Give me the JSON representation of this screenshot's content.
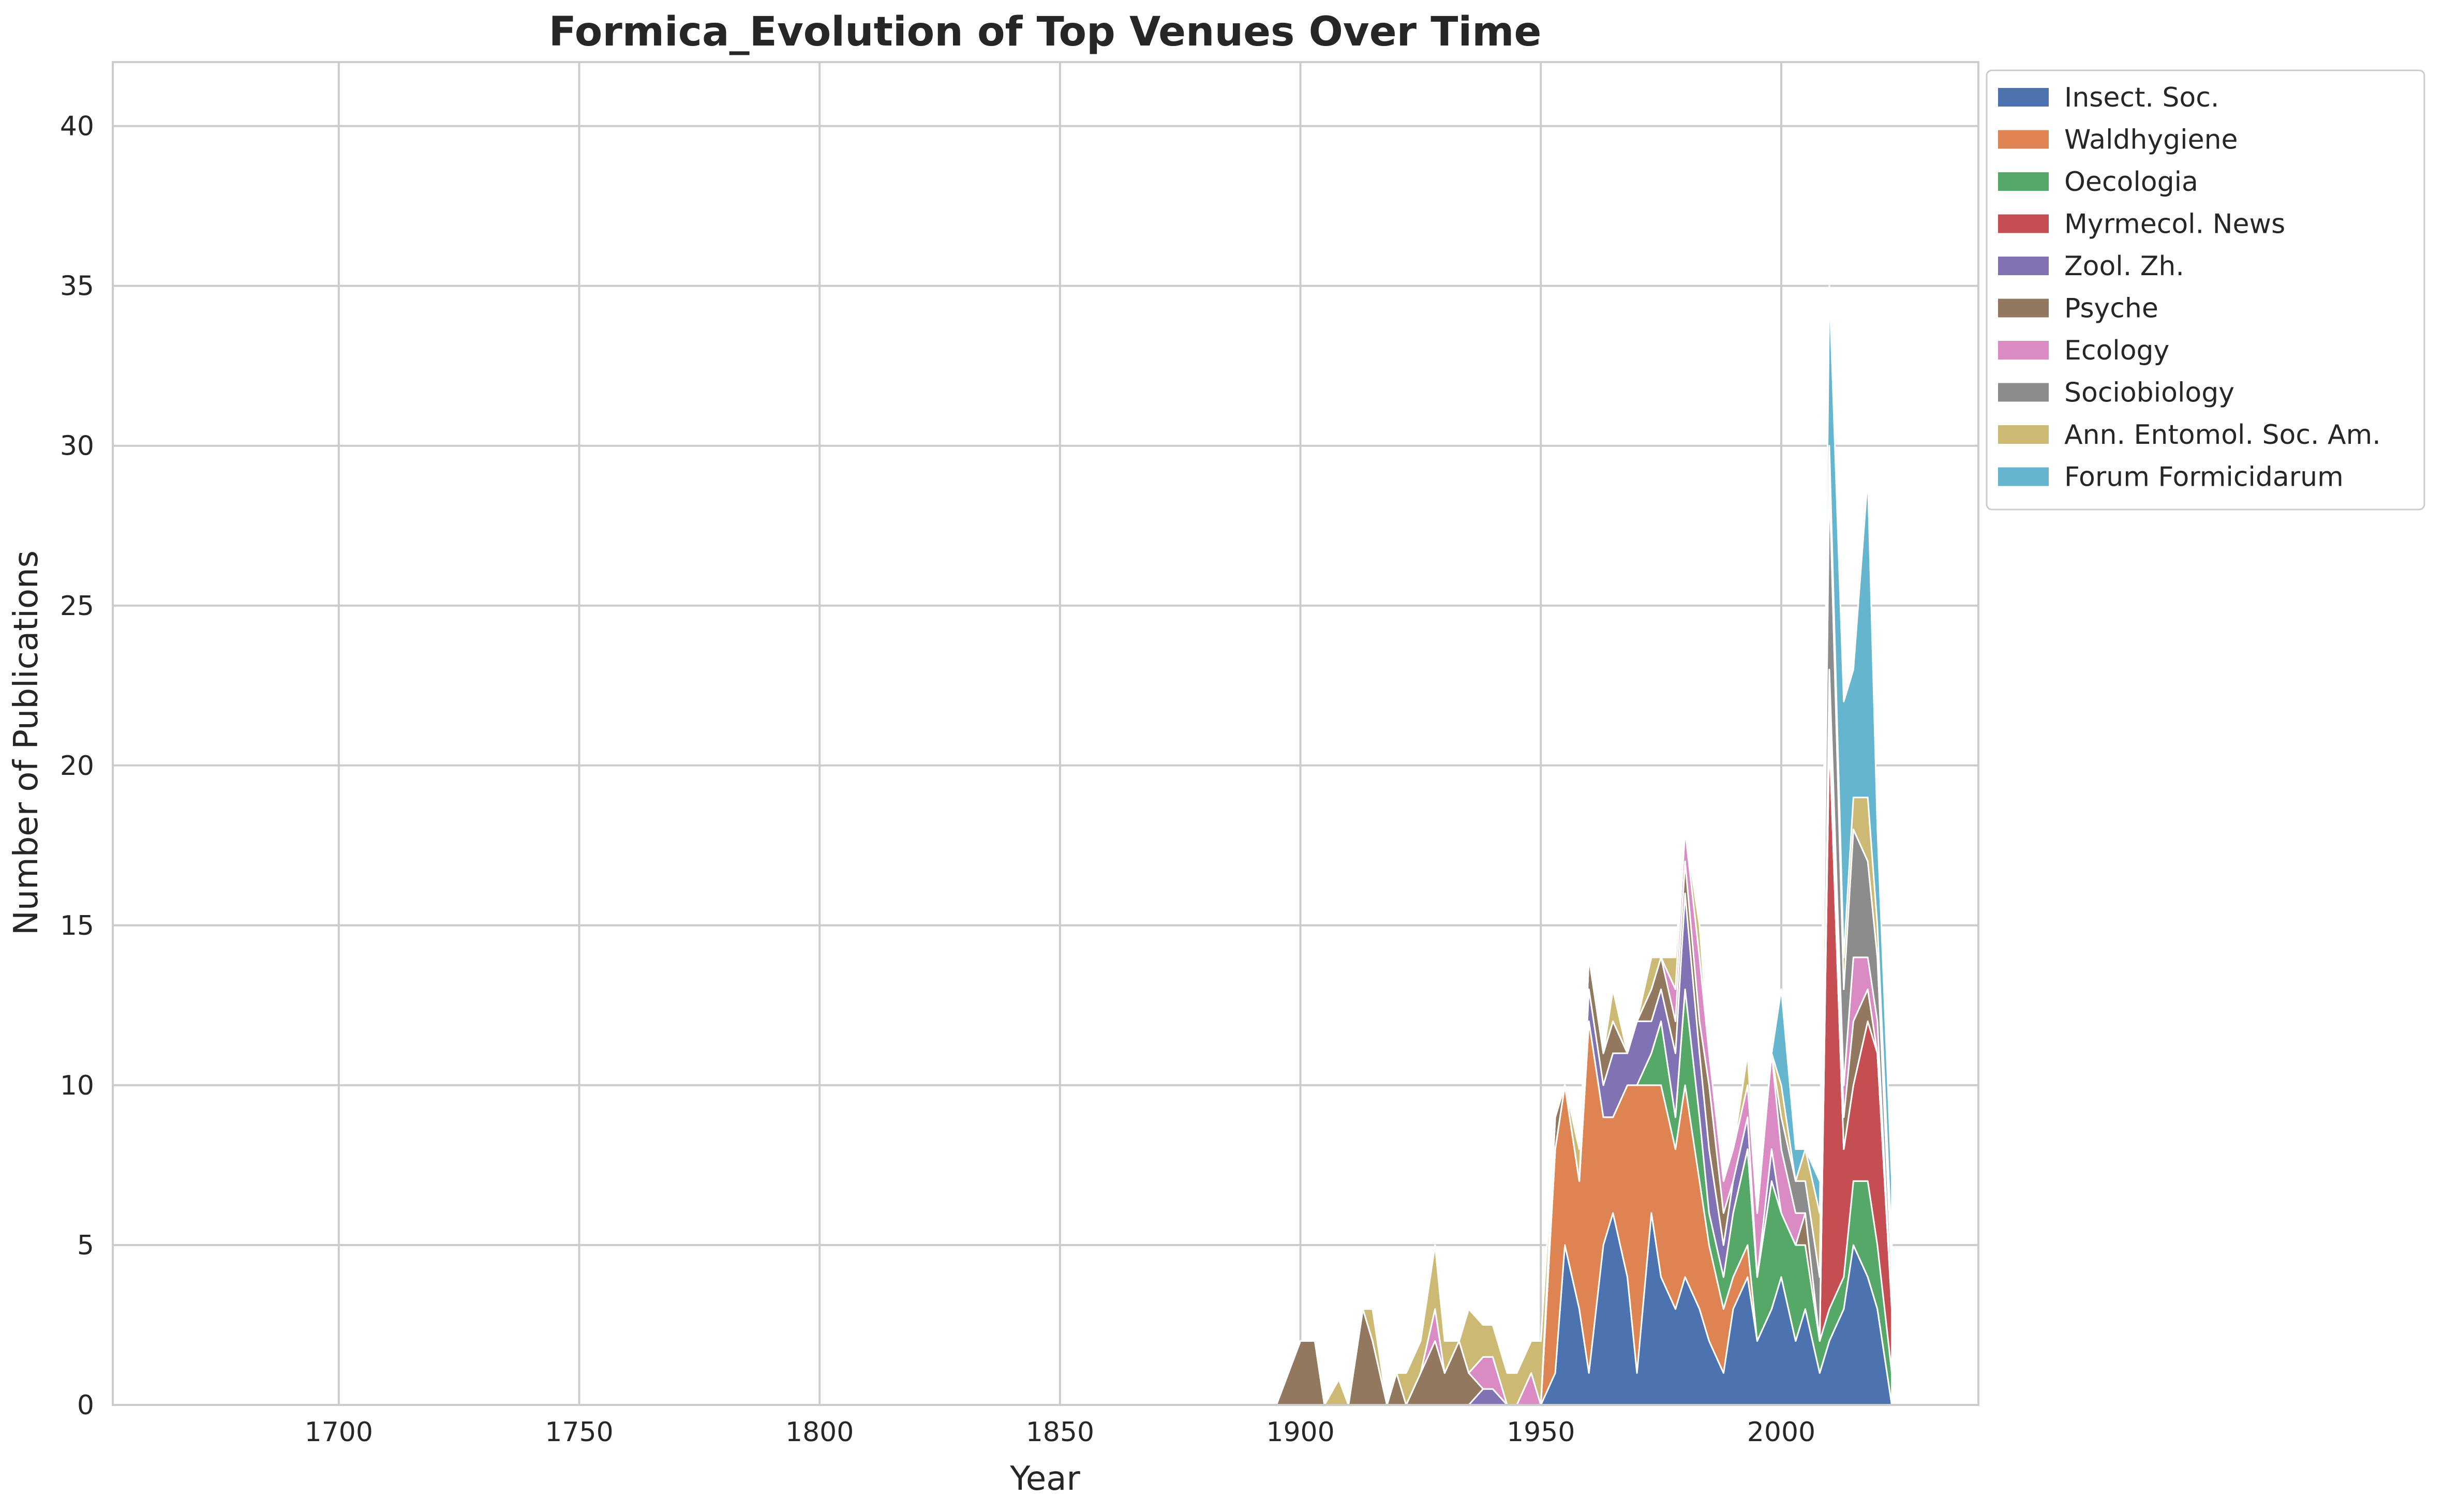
{
  "chart_data": {
    "type": "area",
    "stacked": true,
    "title": "Formica_Evolution of Top Venues Over Time",
    "xlabel": "Year",
    "ylabel": "Number of Publications",
    "xlim": [
      1653,
      2041
    ],
    "ylim": [
      0,
      42
    ],
    "xticks": [
      1700,
      1750,
      1800,
      1850,
      1900,
      1950,
      2000
    ],
    "yticks": [
      0,
      5,
      10,
      15,
      20,
      25,
      30,
      35,
      40
    ],
    "grid": true,
    "legend_position": "outside-top-right",
    "x": [
      1895,
      1897,
      1900,
      1903,
      1905,
      1908,
      1910,
      1913,
      1915,
      1918,
      1920,
      1922,
      1925,
      1928,
      1930,
      1933,
      1935,
      1938,
      1940,
      1943,
      1945,
      1948,
      1950,
      1953,
      1955,
      1958,
      1960,
      1963,
      1965,
      1968,
      1970,
      1973,
      1975,
      1978,
      1980,
      1983,
      1985,
      1988,
      1990,
      1993,
      1995,
      1998,
      2000,
      2003,
      2005,
      2008,
      2010,
      2013,
      2015,
      2018,
      2020,
      2023
    ],
    "series": [
      {
        "name": "Insect. Soc.",
        "color": "#4c72b0",
        "values": [
          0,
          0,
          0,
          0,
          0,
          0,
          0,
          0,
          0,
          0,
          0,
          0,
          0,
          0,
          0,
          0,
          0,
          0,
          0,
          0,
          0,
          0,
          0,
          1,
          5,
          3,
          1,
          5,
          6,
          4,
          1,
          6,
          4,
          3,
          4,
          3,
          2,
          1,
          3,
          4,
          2,
          3,
          4,
          2,
          3,
          1,
          2,
          3,
          5,
          4,
          3,
          0
        ]
      },
      {
        "name": "Waldhygiene",
        "color": "#dd8452",
        "values": [
          0,
          0,
          0,
          0,
          0,
          0,
          0,
          0,
          0,
          0,
          0,
          0,
          0,
          0,
          0,
          0,
          0,
          0,
          0,
          0,
          0,
          0,
          0,
          7,
          5,
          4,
          11,
          4,
          3,
          6,
          9,
          4,
          6,
          5,
          6,
          4,
          3,
          2,
          1,
          1,
          0,
          0,
          0,
          0,
          0,
          0,
          0,
          0,
          0,
          0,
          0,
          0
        ]
      },
      {
        "name": "Oecologia",
        "color": "#55a868",
        "values": [
          0,
          0,
          0,
          0,
          0,
          0,
          0,
          0,
          0,
          0,
          0,
          0,
          0,
          0,
          0,
          0,
          0,
          0,
          0,
          0,
          0,
          0,
          0,
          0,
          0,
          0,
          0,
          0,
          0,
          0,
          0,
          1,
          2,
          1,
          3,
          2,
          1,
          1,
          2,
          3,
          2,
          4,
          2,
          3,
          2,
          1,
          1,
          1,
          2,
          3,
          2,
          1
        ]
      },
      {
        "name": "Myrmecol. News",
        "color": "#c44e52",
        "values": [
          0,
          0,
          0,
          0,
          0,
          0,
          0,
          0,
          0,
          0,
          0,
          0,
          0,
          0,
          0,
          0,
          0,
          0,
          0,
          0,
          0,
          0,
          0,
          0,
          0,
          0,
          0,
          0,
          0,
          0,
          0,
          0,
          0,
          0,
          0,
          0,
          0,
          0,
          0,
          0,
          0,
          0,
          0,
          0,
          0,
          0,
          18,
          4,
          3,
          5,
          6,
          2
        ]
      },
      {
        "name": "Zool. Zh.",
        "color": "#8172b3",
        "values": [
          0,
          0,
          0,
          0,
          0,
          0,
          0,
          0,
          0,
          0,
          0,
          0,
          0,
          0,
          0,
          0,
          0,
          0.5,
          0.5,
          0,
          0,
          0,
          0,
          0,
          0,
          0,
          1,
          1,
          2,
          1,
          2,
          1,
          1,
          2,
          3,
          2,
          2,
          1,
          1,
          1,
          0,
          1,
          0,
          0,
          0,
          0,
          0,
          0,
          0,
          0,
          0,
          0
        ]
      },
      {
        "name": "Psyche",
        "color": "#937860",
        "values": [
          0,
          0.8,
          2,
          2,
          0,
          0,
          0,
          3,
          2,
          0,
          1,
          0,
          1,
          2,
          1,
          2,
          1,
          0,
          0,
          0,
          0,
          0,
          0,
          1,
          0,
          0,
          1,
          1,
          1,
          0,
          0,
          1,
          1,
          1,
          1,
          1,
          2,
          1,
          0,
          0,
          0,
          0,
          0,
          0,
          1,
          0,
          1,
          1,
          2,
          1,
          0,
          0
        ]
      },
      {
        "name": "Ecology",
        "color": "#da8bc3",
        "values": [
          0,
          0,
          0,
          0,
          0,
          0,
          0,
          0,
          0,
          0,
          0,
          0,
          0,
          1,
          0,
          0,
          0,
          1,
          1,
          0,
          0,
          1,
          0,
          0,
          0,
          0,
          0,
          0,
          0,
          0,
          0,
          0,
          0,
          1,
          1,
          2,
          1,
          1,
          1,
          1,
          2,
          3,
          2,
          1,
          0,
          0,
          1,
          1,
          2,
          1,
          1,
          0
        ]
      },
      {
        "name": "Sociobiology",
        "color": "#8c8c8c",
        "values": [
          0,
          0,
          0,
          0,
          0,
          0,
          0,
          0,
          0,
          0,
          0,
          0,
          0,
          0,
          0,
          0,
          0,
          0,
          0,
          0,
          0,
          0,
          0,
          0,
          0,
          0,
          0,
          0,
          0,
          0,
          0,
          0,
          0,
          0,
          0,
          0,
          0,
          0,
          0,
          0,
          0,
          0,
          1,
          1,
          1,
          2,
          6,
          3,
          4,
          3,
          2,
          1
        ]
      },
      {
        "name": "Ann. Entomol. Soc. Am.",
        "color": "#ccb974",
        "values": [
          0,
          0,
          0,
          0,
          0,
          0.8,
          0,
          0,
          1,
          0,
          0,
          1,
          1,
          2,
          1,
          0,
          2,
          1,
          1,
          1,
          1,
          1,
          2,
          0,
          0,
          1,
          0,
          0,
          1,
          0,
          0,
          1,
          0,
          1,
          0,
          1,
          0,
          0,
          0,
          1,
          0,
          0,
          1,
          0,
          1,
          2,
          1,
          1,
          1,
          2,
          1,
          1
        ]
      },
      {
        "name": "Forum Formicidarum",
        "color": "#64b5cd",
        "values": [
          0,
          0,
          0,
          0,
          0,
          0,
          0,
          0,
          0,
          0,
          0,
          0,
          0,
          0,
          0,
          0,
          0,
          0,
          0,
          0,
          0,
          0,
          0,
          0,
          0,
          0,
          0,
          0,
          0,
          0,
          0,
          0,
          0,
          0,
          0,
          0,
          0,
          0,
          0,
          0,
          0,
          0,
          3,
          1,
          0,
          1,
          5,
          8,
          4,
          10,
          3,
          2
        ]
      }
    ]
  }
}
